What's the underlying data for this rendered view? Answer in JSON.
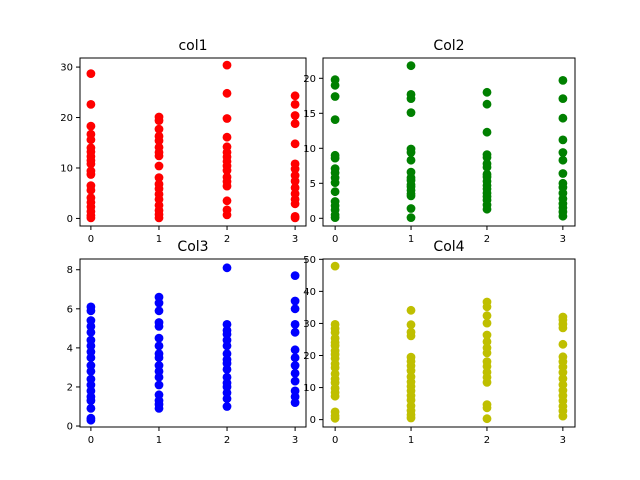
{
  "chart_data": [
    {
      "type": "scatter",
      "title": "col1",
      "color": "#ff0000",
      "xticks": [
        0,
        1,
        2,
        3
      ],
      "yticks": [
        0,
        10,
        20,
        30
      ],
      "xlim": [
        -0.16,
        3.16
      ],
      "ylim": [
        -1.5,
        31.8
      ],
      "points": [
        [
          0,
          28.7
        ],
        [
          0,
          22.6
        ],
        [
          0,
          18.3
        ],
        [
          0,
          16.7
        ],
        [
          0,
          15.6
        ],
        [
          0,
          14.0
        ],
        [
          0,
          13.2
        ],
        [
          0,
          12.3
        ],
        [
          0,
          11.5
        ],
        [
          0,
          10.8
        ],
        [
          0,
          9.4
        ],
        [
          0,
          8.7
        ],
        [
          0,
          6.5
        ],
        [
          0,
          5.6
        ],
        [
          0,
          4.1
        ],
        [
          0,
          3.2
        ],
        [
          0,
          2.3
        ],
        [
          0,
          1.4
        ],
        [
          0,
          0.6
        ],
        [
          0,
          0.1
        ],
        [
          1,
          20.1
        ],
        [
          1,
          19.4
        ],
        [
          1,
          17.7
        ],
        [
          1,
          16.3
        ],
        [
          1,
          15.4
        ],
        [
          1,
          14.1
        ],
        [
          1,
          13.1
        ],
        [
          1,
          12.4
        ],
        [
          1,
          10.4
        ],
        [
          1,
          8.1
        ],
        [
          1,
          6.8
        ],
        [
          1,
          5.9
        ],
        [
          1,
          4.8
        ],
        [
          1,
          3.8
        ],
        [
          1,
          2.6
        ],
        [
          1,
          1.6
        ],
        [
          1,
          0.8
        ],
        [
          1,
          0.1
        ],
        [
          2,
          30.4
        ],
        [
          2,
          24.8
        ],
        [
          2,
          19.8
        ],
        [
          2,
          16.1
        ],
        [
          2,
          14.2
        ],
        [
          2,
          13.1
        ],
        [
          2,
          12.2
        ],
        [
          2,
          11.3
        ],
        [
          2,
          10.4
        ],
        [
          2,
          9.5
        ],
        [
          2,
          8.2
        ],
        [
          2,
          7.3
        ],
        [
          2,
          6.4
        ],
        [
          2,
          3.5
        ],
        [
          2,
          1.7
        ],
        [
          2,
          0.7
        ],
        [
          3,
          24.3
        ],
        [
          3,
          22.6
        ],
        [
          3,
          20.4
        ],
        [
          3,
          18.8
        ],
        [
          3,
          14.8
        ],
        [
          3,
          10.8
        ],
        [
          3,
          9.8
        ],
        [
          3,
          8.5
        ],
        [
          3,
          7.4
        ],
        [
          3,
          6.1
        ],
        [
          3,
          4.9
        ],
        [
          3,
          3.8
        ],
        [
          3,
          2.9
        ],
        [
          3,
          0.4
        ],
        [
          3,
          0.1
        ]
      ]
    },
    {
      "type": "scatter",
      "title": "Col2",
      "color": "#008000",
      "xticks": [
        0,
        1,
        2,
        3
      ],
      "yticks": [
        0,
        5,
        10,
        15,
        20
      ],
      "xlim": [
        -0.16,
        3.16
      ],
      "ylim": [
        -1.1,
        22.9
      ],
      "points": [
        [
          0,
          19.8
        ],
        [
          0,
          19.0
        ],
        [
          0,
          17.4
        ],
        [
          0,
          14.1
        ],
        [
          0,
          9.0
        ],
        [
          0,
          8.6
        ],
        [
          0,
          7.1
        ],
        [
          0,
          6.5
        ],
        [
          0,
          5.8
        ],
        [
          0,
          5.1
        ],
        [
          0,
          3.8
        ],
        [
          0,
          2.4
        ],
        [
          0,
          1.8
        ],
        [
          0,
          1.2
        ],
        [
          0,
          0.5
        ],
        [
          0,
          0.1
        ],
        [
          1,
          21.8
        ],
        [
          1,
          17.7
        ],
        [
          1,
          17.1
        ],
        [
          1,
          15.1
        ],
        [
          1,
          9.9
        ],
        [
          1,
          9.4
        ],
        [
          1,
          8.3
        ],
        [
          1,
          6.6
        ],
        [
          1,
          5.8
        ],
        [
          1,
          5.4
        ],
        [
          1,
          4.8
        ],
        [
          1,
          4.5
        ],
        [
          1,
          4.0
        ],
        [
          1,
          3.5
        ],
        [
          1,
          3.2
        ],
        [
          1,
          1.4
        ],
        [
          1,
          0.1
        ],
        [
          2,
          18.0
        ],
        [
          2,
          16.3
        ],
        [
          2,
          12.3
        ],
        [
          2,
          9.1
        ],
        [
          2,
          8.7
        ],
        [
          2,
          7.8
        ],
        [
          2,
          7.3
        ],
        [
          2,
          6.3
        ],
        [
          2,
          5.9
        ],
        [
          2,
          5.3
        ],
        [
          2,
          4.7
        ],
        [
          2,
          4.2
        ],
        [
          2,
          3.6
        ],
        [
          2,
          3.1
        ],
        [
          2,
          2.6
        ],
        [
          2,
          1.9
        ],
        [
          2,
          1.3
        ],
        [
          3,
          19.7
        ],
        [
          3,
          17.1
        ],
        [
          3,
          14.3
        ],
        [
          3,
          11.2
        ],
        [
          3,
          9.4
        ],
        [
          3,
          8.3
        ],
        [
          3,
          6.4
        ],
        [
          3,
          5.0
        ],
        [
          3,
          4.4
        ],
        [
          3,
          3.6
        ],
        [
          3,
          2.8
        ],
        [
          3,
          2.1
        ],
        [
          3,
          1.5
        ],
        [
          3,
          0.9
        ],
        [
          3,
          0.3
        ]
      ]
    },
    {
      "type": "scatter",
      "title": "Col3",
      "color": "#0000ff",
      "xticks": [
        0,
        1,
        2,
        3
      ],
      "yticks": [
        0,
        2,
        4,
        6,
        8
      ],
      "xlim": [
        -0.16,
        3.16
      ],
      "ylim": [
        -0.05,
        8.55
      ],
      "points": [
        [
          0,
          6.1
        ],
        [
          0,
          5.9
        ],
        [
          0,
          5.4
        ],
        [
          0,
          5.1
        ],
        [
          0,
          4.8
        ],
        [
          0,
          4.4
        ],
        [
          0,
          4.1
        ],
        [
          0,
          3.8
        ],
        [
          0,
          3.5
        ],
        [
          0,
          3.1
        ],
        [
          0,
          2.8
        ],
        [
          0,
          2.4
        ],
        [
          0,
          2.1
        ],
        [
          0,
          1.8
        ],
        [
          0,
          1.5
        ],
        [
          0,
          1.3
        ],
        [
          0,
          0.9
        ],
        [
          0,
          0.4
        ],
        [
          0,
          0.3
        ],
        [
          1,
          6.6
        ],
        [
          1,
          6.3
        ],
        [
          1,
          5.9
        ],
        [
          1,
          5.3
        ],
        [
          1,
          5.1
        ],
        [
          1,
          4.5
        ],
        [
          1,
          4.1
        ],
        [
          1,
          3.7
        ],
        [
          1,
          3.5
        ],
        [
          1,
          3.1
        ],
        [
          1,
          2.8
        ],
        [
          1,
          2.5
        ],
        [
          1,
          2.1
        ],
        [
          1,
          1.6
        ],
        [
          1,
          1.3
        ],
        [
          1,
          1.1
        ],
        [
          1,
          0.9
        ],
        [
          2,
          8.1
        ],
        [
          2,
          5.2
        ],
        [
          2,
          4.9
        ],
        [
          2,
          4.7
        ],
        [
          2,
          4.4
        ],
        [
          2,
          4.1
        ],
        [
          2,
          3.7
        ],
        [
          2,
          3.4
        ],
        [
          2,
          3.2
        ],
        [
          2,
          2.9
        ],
        [
          2,
          2.5
        ],
        [
          2,
          2.2
        ],
        [
          2,
          2.0
        ],
        [
          2,
          1.7
        ],
        [
          2,
          1.4
        ],
        [
          2,
          1.0
        ],
        [
          3,
          7.7
        ],
        [
          3,
          6.4
        ],
        [
          3,
          6.0
        ],
        [
          3,
          5.2
        ],
        [
          3,
          4.8
        ],
        [
          3,
          3.9
        ],
        [
          3,
          3.5
        ],
        [
          3,
          3.1
        ],
        [
          3,
          2.7
        ],
        [
          3,
          2.3
        ],
        [
          3,
          1.8
        ],
        [
          3,
          1.5
        ],
        [
          3,
          1.2
        ]
      ]
    },
    {
      "type": "scatter",
      "title": "Col4",
      "color": "#bfbf00",
      "xticks": [
        0,
        1,
        2,
        3
      ],
      "yticks": [
        0,
        10,
        20,
        30,
        40,
        50
      ],
      "xlim": [
        -0.16,
        3.16
      ],
      "ylim": [
        -2.3,
        50.1
      ],
      "points": [
        [
          0,
          47.9
        ],
        [
          0,
          29.7
        ],
        [
          0,
          28.4
        ],
        [
          0,
          27.2
        ],
        [
          0,
          25.4
        ],
        [
          0,
          24.1
        ],
        [
          0,
          23.1
        ],
        [
          0,
          21.5
        ],
        [
          0,
          20.3
        ],
        [
          0,
          19.1
        ],
        [
          0,
          17.4
        ],
        [
          0,
          16.2
        ],
        [
          0,
          14.3
        ],
        [
          0,
          12.7
        ],
        [
          0,
          11.5
        ],
        [
          0,
          9.8
        ],
        [
          0,
          8.5
        ],
        [
          0,
          7.3
        ],
        [
          0,
          2.4
        ],
        [
          0,
          1.2
        ],
        [
          0,
          0.4
        ],
        [
          1,
          34.1
        ],
        [
          1,
          29.6
        ],
        [
          1,
          27.3
        ],
        [
          1,
          26.1
        ],
        [
          1,
          19.5
        ],
        [
          1,
          18.2
        ],
        [
          1,
          16.8
        ],
        [
          1,
          15.3
        ],
        [
          1,
          13.4
        ],
        [
          1,
          11.8
        ],
        [
          1,
          10.4
        ],
        [
          1,
          9.0
        ],
        [
          1,
          7.5
        ],
        [
          1,
          6.1
        ],
        [
          1,
          4.3
        ],
        [
          1,
          2.8
        ],
        [
          1,
          1.5
        ],
        [
          1,
          0.5
        ],
        [
          2,
          36.7
        ],
        [
          2,
          35.2
        ],
        [
          2,
          32.4
        ],
        [
          2,
          30.1
        ],
        [
          2,
          26.4
        ],
        [
          2,
          24.3
        ],
        [
          2,
          22.4
        ],
        [
          2,
          20.8
        ],
        [
          2,
          18.1
        ],
        [
          2,
          16.6
        ],
        [
          2,
          14.8
        ],
        [
          2,
          13.2
        ],
        [
          2,
          11.6
        ],
        [
          2,
          4.7
        ],
        [
          2,
          3.7
        ],
        [
          2,
          0.3
        ],
        [
          3,
          32.0
        ],
        [
          3,
          31.1
        ],
        [
          3,
          29.8
        ],
        [
          3,
          28.6
        ],
        [
          3,
          23.5
        ],
        [
          3,
          19.6
        ],
        [
          3,
          18.1
        ],
        [
          3,
          16.4
        ],
        [
          3,
          14.7
        ],
        [
          3,
          12.8
        ],
        [
          3,
          10.9
        ],
        [
          3,
          9.1
        ],
        [
          3,
          7.5
        ],
        [
          3,
          5.9
        ],
        [
          3,
          4.2
        ],
        [
          3,
          2.7
        ],
        [
          3,
          1.1
        ]
      ]
    }
  ]
}
